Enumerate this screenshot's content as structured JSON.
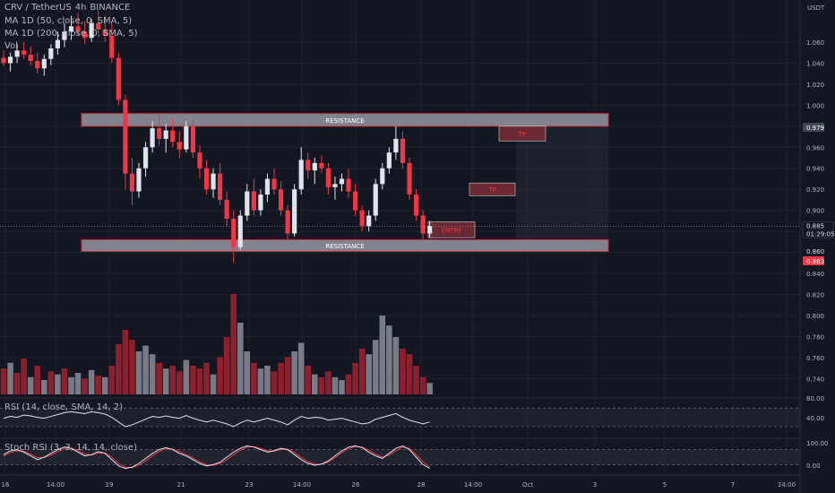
{
  "header": {
    "symbol": "CRV / TetherUS",
    "interval": "4h",
    "exchange": "BINANCE"
  },
  "legend": {
    "ma1": "MA 1D (50, close, 0, SMA, 5)",
    "ma2": "MA 1D (200, close, 0, SMA, 5)",
    "vol": "Vol"
  },
  "colors": {
    "bg": "#131722",
    "up": "#e0e3eb",
    "down": "#f23645",
    "vol_up": "#787b86",
    "vol_down": "#8e1f2c",
    "zone_fill": "#9598a1",
    "zone_stroke": "#f23645",
    "rsi_line": "#e0e3eb",
    "stoch_k": "#e0e3eb",
    "stoch_d": "#f23645"
  },
  "chart_data": {
    "type": "candlestick",
    "yaxis": {
      "currency": "USDT",
      "min": 0.725,
      "max": 1.1,
      "ticks": [
        "1.060",
        "1.040",
        "1.020",
        "1.000",
        "0.980",
        "0.960",
        "0.940",
        "0.920",
        "0.900",
        "0.880",
        "0.860",
        "0.840",
        "0.820",
        "0.800",
        "0.780",
        "0.760",
        "0.740"
      ]
    },
    "xaxis": {
      "ticks": [
        "16",
        "14:00",
        "19",
        "21",
        "23",
        "14:00",
        "26",
        "28",
        "14:00",
        "Oct",
        "3",
        "5",
        "7",
        "14:00"
      ]
    },
    "price_badges": {
      "upper": "0.979",
      "current": "0.885",
      "countdown": "01:29:05",
      "lower1": "0.860",
      "lower2": "0.863"
    },
    "zones": [
      {
        "label": "RESISTANCE",
        "top": 0.992,
        "bottom": 0.98
      },
      {
        "label": "RESISTANCE",
        "top": 0.872,
        "bottom": 0.861
      }
    ],
    "boxes": [
      {
        "label": "TP",
        "top": 0.98,
        "bottom": 0.966
      },
      {
        "label": "TP",
        "top": 0.926,
        "bottom": 0.914
      },
      {
        "label": "ENTRY",
        "top": 0.889,
        "bottom": 0.874
      }
    ],
    "candles": [
      [
        1.045,
        1.052,
        1.037,
        1.04
      ],
      [
        1.04,
        1.05,
        1.032,
        1.046
      ],
      [
        1.046,
        1.058,
        1.04,
        1.052
      ],
      [
        1.052,
        1.06,
        1.044,
        1.048
      ],
      [
        1.048,
        1.056,
        1.038,
        1.042
      ],
      [
        1.042,
        1.05,
        1.03,
        1.035
      ],
      [
        1.035,
        1.048,
        1.028,
        1.044
      ],
      [
        1.044,
        1.058,
        1.038,
        1.054
      ],
      [
        1.054,
        1.07,
        1.048,
        1.062
      ],
      [
        1.062,
        1.078,
        1.055,
        1.07
      ],
      [
        1.07,
        1.085,
        1.062,
        1.075
      ],
      [
        1.075,
        1.088,
        1.066,
        1.07
      ],
      [
        1.07,
        1.08,
        1.058,
        1.064
      ],
      [
        1.064,
        1.082,
        1.06,
        1.078
      ],
      [
        1.078,
        1.09,
        1.068,
        1.072
      ],
      [
        1.072,
        1.085,
        1.06,
        1.066
      ],
      [
        1.066,
        1.078,
        1.04,
        1.045
      ],
      [
        1.045,
        1.05,
        1.0,
        1.005
      ],
      [
        1.005,
        1.01,
        0.92,
        0.935
      ],
      [
        0.935,
        0.95,
        0.905,
        0.918
      ],
      [
        0.918,
        0.945,
        0.912,
        0.94
      ],
      [
        0.94,
        0.965,
        0.932,
        0.96
      ],
      [
        0.96,
        0.985,
        0.955,
        0.978
      ],
      [
        0.978,
        0.99,
        0.962,
        0.968
      ],
      [
        0.968,
        0.982,
        0.955,
        0.976
      ],
      [
        0.976,
        0.988,
        0.96,
        0.965
      ],
      [
        0.965,
        0.975,
        0.95,
        0.958
      ],
      [
        0.958,
        0.985,
        0.955,
        0.98
      ],
      [
        0.98,
        0.985,
        0.95,
        0.955
      ],
      [
        0.955,
        0.962,
        0.93,
        0.94
      ],
      [
        0.94,
        0.948,
        0.915,
        0.92
      ],
      [
        0.92,
        0.94,
        0.912,
        0.935
      ],
      [
        0.935,
        0.945,
        0.905,
        0.91
      ],
      [
        0.91,
        0.918,
        0.885,
        0.892
      ],
      [
        0.892,
        0.9,
        0.85,
        0.865
      ],
      [
        0.865,
        0.9,
        0.862,
        0.895
      ],
      [
        0.895,
        0.925,
        0.89,
        0.918
      ],
      [
        0.918,
        0.93,
        0.895,
        0.9
      ],
      [
        0.9,
        0.92,
        0.895,
        0.915
      ],
      [
        0.915,
        0.935,
        0.908,
        0.93
      ],
      [
        0.93,
        0.94,
        0.915,
        0.92
      ],
      [
        0.92,
        0.928,
        0.895,
        0.9
      ],
      [
        0.9,
        0.905,
        0.87,
        0.878
      ],
      [
        0.878,
        0.925,
        0.875,
        0.92
      ],
      [
        0.92,
        0.96,
        0.915,
        0.948
      ],
      [
        0.948,
        0.955,
        0.93,
        0.938
      ],
      [
        0.938,
        0.95,
        0.925,
        0.945
      ],
      [
        0.945,
        0.952,
        0.935,
        0.94
      ],
      [
        0.94,
        0.945,
        0.915,
        0.922
      ],
      [
        0.922,
        0.932,
        0.91,
        0.925
      ],
      [
        0.925,
        0.935,
        0.918,
        0.93
      ],
      [
        0.93,
        0.94,
        0.912,
        0.918
      ],
      [
        0.918,
        0.925,
        0.895,
        0.9
      ],
      [
        0.9,
        0.905,
        0.88,
        0.885
      ],
      [
        0.885,
        0.9,
        0.88,
        0.895
      ],
      [
        0.895,
        0.93,
        0.89,
        0.925
      ],
      [
        0.925,
        0.945,
        0.92,
        0.94
      ],
      [
        0.94,
        0.96,
        0.935,
        0.955
      ],
      [
        0.955,
        0.98,
        0.948,
        0.968
      ],
      [
        0.968,
        0.975,
        0.94,
        0.945
      ],
      [
        0.945,
        0.95,
        0.91,
        0.915
      ],
      [
        0.915,
        0.92,
        0.89,
        0.895
      ],
      [
        0.895,
        0.9,
        0.872,
        0.878
      ],
      [
        0.878,
        0.89,
        0.874,
        0.885
      ]
    ],
    "volume": [
      {
        "v": 18,
        "up": false
      },
      {
        "v": 22,
        "up": true
      },
      {
        "v": 15,
        "up": false
      },
      {
        "v": 25,
        "up": false
      },
      {
        "v": 12,
        "up": true
      },
      {
        "v": 20,
        "up": false
      },
      {
        "v": 10,
        "up": true
      },
      {
        "v": 16,
        "up": false
      },
      {
        "v": 14,
        "up": true
      },
      {
        "v": 18,
        "up": false
      },
      {
        "v": 12,
        "up": true
      },
      {
        "v": 15,
        "up": true
      },
      {
        "v": 11,
        "up": false
      },
      {
        "v": 17,
        "up": true
      },
      {
        "v": 13,
        "up": false
      },
      {
        "v": 12,
        "up": true
      },
      {
        "v": 20,
        "up": false
      },
      {
        "v": 35,
        "up": false
      },
      {
        "v": 45,
        "up": false
      },
      {
        "v": 38,
        "up": false
      },
      {
        "v": 30,
        "up": true
      },
      {
        "v": 34,
        "up": true
      },
      {
        "v": 28,
        "up": true
      },
      {
        "v": 22,
        "up": false
      },
      {
        "v": 18,
        "up": true
      },
      {
        "v": 20,
        "up": false
      },
      {
        "v": 16,
        "up": false
      },
      {
        "v": 24,
        "up": true
      },
      {
        "v": 20,
        "up": false
      },
      {
        "v": 18,
        "up": false
      },
      {
        "v": 22,
        "up": false
      },
      {
        "v": 14,
        "up": true
      },
      {
        "v": 26,
        "up": false
      },
      {
        "v": 40,
        "up": false
      },
      {
        "v": 70,
        "up": false
      },
      {
        "v": 50,
        "up": true
      },
      {
        "v": 30,
        "up": true
      },
      {
        "v": 22,
        "up": false
      },
      {
        "v": 18,
        "up": true
      },
      {
        "v": 20,
        "up": true
      },
      {
        "v": 16,
        "up": false
      },
      {
        "v": 22,
        "up": false
      },
      {
        "v": 26,
        "up": false
      },
      {
        "v": 30,
        "up": true
      },
      {
        "v": 36,
        "up": true
      },
      {
        "v": 20,
        "up": false
      },
      {
        "v": 14,
        "up": true
      },
      {
        "v": 12,
        "up": false
      },
      {
        "v": 16,
        "up": false
      },
      {
        "v": 12,
        "up": true
      },
      {
        "v": 10,
        "up": true
      },
      {
        "v": 14,
        "up": false
      },
      {
        "v": 22,
        "up": false
      },
      {
        "v": 32,
        "up": false
      },
      {
        "v": 28,
        "up": true
      },
      {
        "v": 38,
        "up": true
      },
      {
        "v": 55,
        "up": true
      },
      {
        "v": 48,
        "up": true
      },
      {
        "v": 40,
        "up": true
      },
      {
        "v": 32,
        "up": false
      },
      {
        "v": 28,
        "up": false
      },
      {
        "v": 20,
        "up": false
      },
      {
        "v": 12,
        "up": false
      },
      {
        "v": 8,
        "up": true
      }
    ],
    "rsi": {
      "label": "RSI (14, close, SMA, 14, 2)",
      "ticks": [
        "80.00",
        "40.00"
      ],
      "values": [
        48,
        52,
        50,
        55,
        53,
        50,
        48,
        52,
        56,
        60,
        62,
        60,
        58,
        62,
        60,
        57,
        50,
        40,
        30,
        34,
        40,
        46,
        52,
        50,
        53,
        50,
        48,
        54,
        48,
        44,
        40,
        44,
        40,
        36,
        30,
        38,
        44,
        40,
        44,
        48,
        44,
        40,
        34,
        44,
        52,
        48,
        50,
        49,
        44,
        46,
        48,
        44,
        40,
        36,
        38,
        46,
        50,
        54,
        58,
        50,
        44,
        40,
        36,
        40
      ]
    },
    "stoch_rsi": {
      "label": "Stoch RSI (3, 3, 14, 14, close)",
      "ticks": [
        "100.00",
        "0.00"
      ],
      "k": [
        60,
        75,
        80,
        70,
        55,
        40,
        50,
        65,
        80,
        90,
        85,
        70,
        55,
        60,
        72,
        65,
        40,
        15,
        5,
        10,
        25,
        45,
        65,
        80,
        88,
        80,
        65,
        55,
        40,
        25,
        15,
        20,
        30,
        50,
        70,
        85,
        95,
        90,
        80,
        70,
        75,
        85,
        80,
        60,
        40,
        25,
        18,
        22,
        35,
        55,
        75,
        90,
        95,
        88,
        70,
        55,
        45,
        65,
        85,
        95,
        80,
        50,
        20,
        5
      ],
      "d": [
        55,
        68,
        75,
        74,
        62,
        48,
        48,
        58,
        72,
        85,
        86,
        76,
        62,
        58,
        66,
        66,
        50,
        25,
        10,
        8,
        18,
        35,
        55,
        72,
        84,
        82,
        72,
        60,
        46,
        32,
        20,
        18,
        25,
        40,
        60,
        78,
        90,
        92,
        85,
        75,
        74,
        80,
        82,
        68,
        48,
        32,
        22,
        22,
        30,
        48,
        68,
        84,
        92,
        90,
        78,
        62,
        50,
        58,
        76,
        90,
        85,
        60,
        32,
        12
      ]
    }
  }
}
